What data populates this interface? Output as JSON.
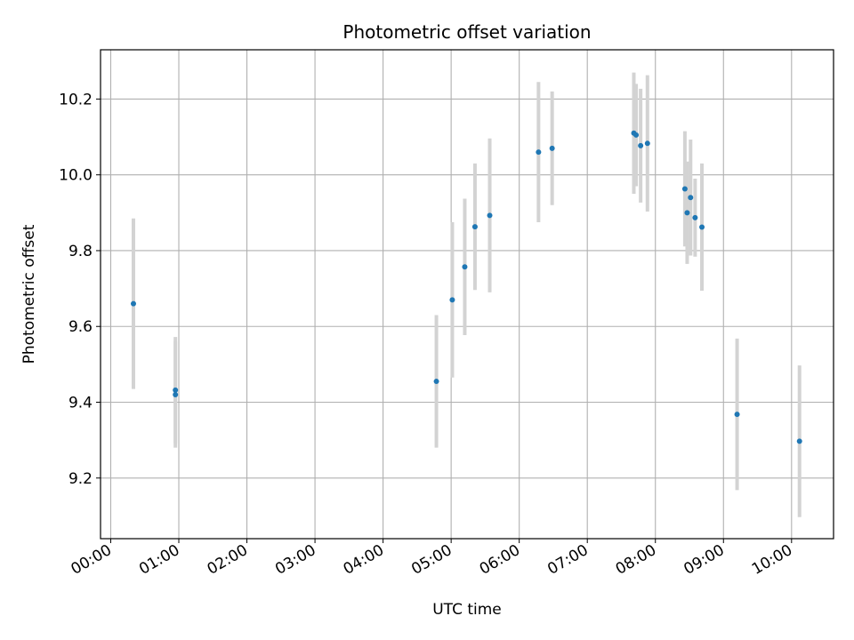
{
  "chart_data": {
    "type": "scatter",
    "title": "Photometric offset variation",
    "xlabel": "UTC time",
    "ylabel": "Photometric offset",
    "x_ticks": [
      "00:00",
      "01:00",
      "02:00",
      "03:00",
      "04:00",
      "05:00",
      "06:00",
      "07:00",
      "08:00",
      "09:00",
      "10:00"
    ],
    "y_ticks": [
      "9.2",
      "9.4",
      "9.6",
      "9.8",
      "10.0",
      "10.2"
    ],
    "xlim": [
      "23:51",
      "10:37"
    ],
    "ylim": [
      9.04,
      10.33
    ],
    "grid": true,
    "marker_color": "#1f77b4",
    "errorbar_color": "#d3d3d3",
    "points": [
      {
        "time": "00:20",
        "offset": 9.66,
        "err": 0.225
      },
      {
        "time": "00:57",
        "offset": 9.432,
        "err": 0.14
      },
      {
        "time": "00:57",
        "offset": 9.42,
        "err": 0.14
      },
      {
        "time": "04:47",
        "offset": 9.455,
        "err": 0.175
      },
      {
        "time": "05:01",
        "offset": 9.67,
        "err": 0.205
      },
      {
        "time": "05:12",
        "offset": 9.757,
        "err": 0.18
      },
      {
        "time": "05:21",
        "offset": 9.863,
        "err": 0.167
      },
      {
        "time": "05:34",
        "offset": 9.893,
        "err": 0.203
      },
      {
        "time": "06:17",
        "offset": 10.06,
        "err": 0.185
      },
      {
        "time": "06:29",
        "offset": 10.07,
        "err": 0.15
      },
      {
        "time": "07:41",
        "offset": 10.11,
        "err": 0.16
      },
      {
        "time": "07:43",
        "offset": 10.105,
        "err": 0.135
      },
      {
        "time": "07:47",
        "offset": 10.077,
        "err": 0.15
      },
      {
        "time": "07:53",
        "offset": 10.083,
        "err": 0.18
      },
      {
        "time": "08:26",
        "offset": 9.963,
        "err": 0.152
      },
      {
        "time": "08:28",
        "offset": 9.9,
        "err": 0.135
      },
      {
        "time": "08:31",
        "offset": 9.94,
        "err": 0.153
      },
      {
        "time": "08:35",
        "offset": 9.887,
        "err": 0.103
      },
      {
        "time": "08:41",
        "offset": 9.862,
        "err": 0.168
      },
      {
        "time": "09:12",
        "offset": 9.368,
        "err": 0.2
      },
      {
        "time": "10:07",
        "offset": 9.297,
        "err": 0.2
      }
    ]
  }
}
